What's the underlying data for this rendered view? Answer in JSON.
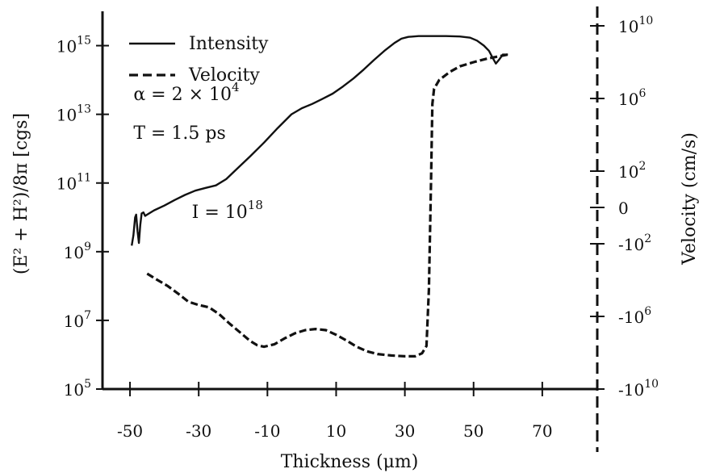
{
  "chart_data": {
    "type": "line",
    "xlabel": "Thickness (μm)",
    "ylabel_left": "(E² + H²)/8π [cgs]",
    "ylabel_right": "Velocity (cm/s)",
    "xlim": [
      -58,
      86
    ],
    "ylim_left": [
      100000.0,
      1e+16
    ],
    "x_ticks": [
      -50,
      -30,
      -10,
      10,
      30,
      50,
      70
    ],
    "y_left_ticks": [
      {
        "value": 100000.0,
        "base": "10",
        "exp": "5"
      },
      {
        "value": 10000000.0,
        "base": "10",
        "exp": "7"
      },
      {
        "value": 1000000000.0,
        "base": "10",
        "exp": "9"
      },
      {
        "value": 100000000000.0,
        "base": "10",
        "exp": "11"
      },
      {
        "value": 10000000000000.0,
        "base": "10",
        "exp": "13"
      },
      {
        "value": 1000000000000000.0,
        "base": "10",
        "exp": "15"
      }
    ],
    "y_right_ticks": [
      {
        "pos": 4.8,
        "sign": "",
        "base": "10",
        "exp": "10"
      },
      {
        "pos": 3.8,
        "sign": "",
        "base": "10",
        "exp": "6"
      },
      {
        "pos": 2.8,
        "sign": "",
        "base": "10",
        "exp": "2"
      },
      {
        "pos": 2.3,
        "sign": "",
        "base": "0",
        "exp": ""
      },
      {
        "pos": 1.8,
        "sign": "-",
        "base": "10",
        "exp": "2"
      },
      {
        "pos": 0.8,
        "sign": "-",
        "base": "10",
        "exp": "6"
      },
      {
        "pos": -0.2,
        "sign": "-",
        "base": "10",
        "exp": "10"
      }
    ],
    "legend": [
      {
        "label": "Intensity",
        "style": "solid"
      },
      {
        "label": "Velocity",
        "style": "dashed"
      }
    ],
    "legend_position": "top-left",
    "annotations": [
      {
        "prefix": "α = 2 × 10",
        "exp": "4",
        "x": -49,
        "y": 40000000000000.0
      },
      {
        "prefix": "T = 1.5 ps",
        "exp": "",
        "x": -49,
        "y": 3000000000000.0
      },
      {
        "prefix": "I = 10",
        "exp": "18",
        "x": -32,
        "y": 15000000000.0
      }
    ],
    "series": [
      {
        "name": "Intensity",
        "style": "solid",
        "points": [
          [
            -49.5,
            1500000000.0
          ],
          [
            -49,
            3000000000.0
          ],
          [
            -48.5,
            10000000000.0
          ],
          [
            -48.2,
            12000000000.0
          ],
          [
            -47.8,
            4000000000.0
          ],
          [
            -47.4,
            1800000000.0
          ],
          [
            -47,
            6000000000.0
          ],
          [
            -46.6,
            13000000000.0
          ],
          [
            -46.1,
            14000000000.0
          ],
          [
            -45.6,
            11000000000.0
          ],
          [
            -45,
            12000000000.0
          ],
          [
            -43,
            16000000000.0
          ],
          [
            -40,
            22000000000.0
          ],
          [
            -37,
            32000000000.0
          ],
          [
            -34,
            45000000000.0
          ],
          [
            -31,
            60000000000.0
          ],
          [
            -28,
            72000000000.0
          ],
          [
            -25,
            85000000000.0
          ],
          [
            -22,
            130000000000.0
          ],
          [
            -19,
            250000000000.0
          ],
          [
            -15,
            600000000000.0
          ],
          [
            -11,
            1500000000000.0
          ],
          [
            -7,
            4000000000000.0
          ],
          [
            -3,
            10000000000000.0
          ],
          [
            0,
            15000000000000.0
          ],
          [
            3,
            20000000000000.0
          ],
          [
            6,
            28000000000000.0
          ],
          [
            9,
            40000000000000.0
          ],
          [
            12,
            65000000000000.0
          ],
          [
            15,
            110000000000000.0
          ],
          [
            18,
            200000000000000.0
          ],
          [
            21,
            380000000000000.0
          ],
          [
            24,
            700000000000000.0
          ],
          [
            27,
            1200000000000000.0
          ],
          [
            29,
            1600000000000000.0
          ],
          [
            31,
            1800000000000000.0
          ],
          [
            34,
            1900000000000000.0
          ],
          [
            38,
            1900000000000000.0
          ],
          [
            42,
            1900000000000000.0
          ],
          [
            46,
            1850000000000000.0
          ],
          [
            49,
            1700000000000000.0
          ],
          [
            51,
            1400000000000000.0
          ],
          [
            53,
            1000000000000000.0
          ],
          [
            54.5,
            700000000000000.0
          ],
          [
            55.5,
            450000000000000.0
          ],
          [
            56.5,
            300000000000000.0
          ],
          [
            57.5,
            400000000000000.0
          ],
          [
            58.5,
            550000000000000.0
          ],
          [
            60,
            550000000000000.0
          ]
        ]
      },
      {
        "name": "Velocity",
        "style": "dashed",
        "points": [
          [
            -45,
            230000000.0
          ],
          [
            -42,
            150000000.0
          ],
          [
            -39,
            100000000.0
          ],
          [
            -36,
            60000000.0
          ],
          [
            -33,
            35000000.0
          ],
          [
            -30,
            28000000.0
          ],
          [
            -27,
            24000000.0
          ],
          [
            -24,
            15000000.0
          ],
          [
            -21,
            8000000.0
          ],
          [
            -18,
            4500000.0
          ],
          [
            -15,
            2500000.0
          ],
          [
            -13,
            1900000.0
          ],
          [
            -11,
            1700000.0
          ],
          [
            -8,
            2000000.0
          ],
          [
            -5,
            3000000.0
          ],
          [
            -2,
            4200000.0
          ],
          [
            1,
            5200000.0
          ],
          [
            4,
            5600000.0
          ],
          [
            7,
            5200000.0
          ],
          [
            10,
            3800000.0
          ],
          [
            13,
            2600000.0
          ],
          [
            16,
            1700000.0
          ],
          [
            19,
            1250000.0
          ],
          [
            22,
            1050000.0
          ],
          [
            26,
            950000.0
          ],
          [
            30,
            900000.0
          ],
          [
            33,
            900000.0
          ],
          [
            35,
            1100000.0
          ],
          [
            36.3,
            1800000.0
          ],
          [
            37,
            80000000.0
          ],
          [
            37.6,
            100000000000.0
          ],
          [
            38,
            20000000000000.0
          ],
          [
            38.5,
            55000000000000.0
          ],
          [
            40,
            100000000000000.0
          ],
          [
            43,
            170000000000000.0
          ],
          [
            46,
            250000000000000.0
          ],
          [
            50,
            330000000000000.0
          ],
          [
            54,
            420000000000000.0
          ],
          [
            57,
            480000000000000.0
          ],
          [
            60,
            550000000000000.0
          ]
        ]
      }
    ]
  }
}
